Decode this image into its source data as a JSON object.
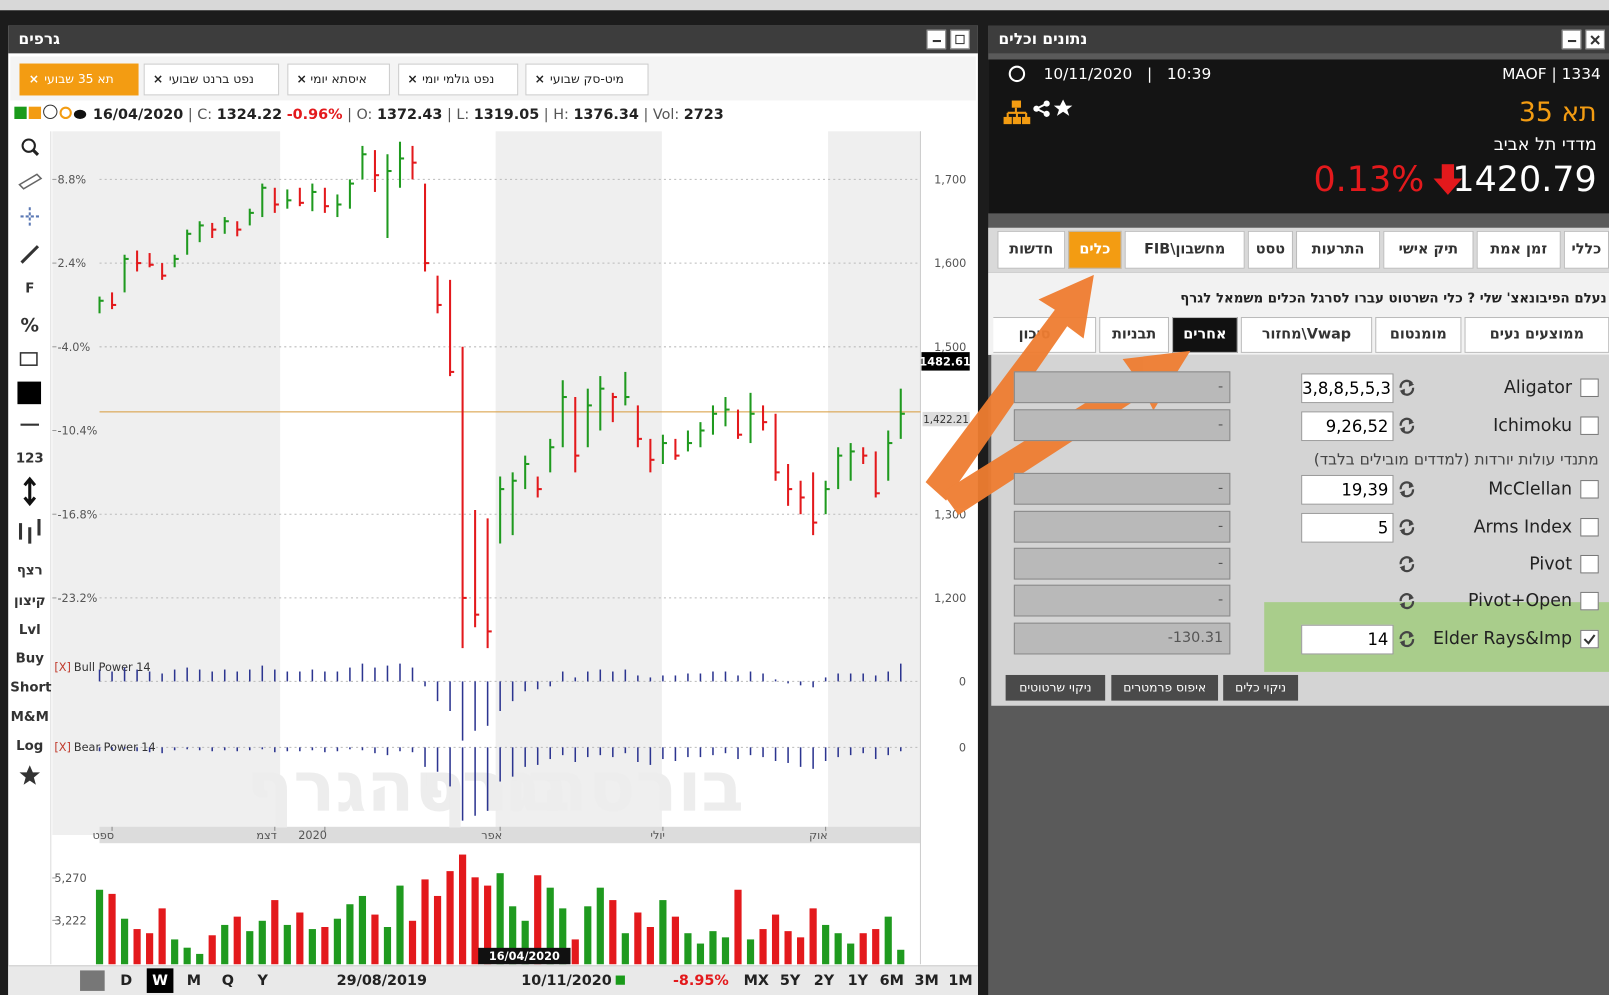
{
  "left_panel": {
    "title": "גרפים",
    "tabs": [
      "תא 35 שבועי",
      "נפט ברנט שבועי",
      "איסתא יומי",
      "נפט גולמי יומי",
      "מיט-סק שבועי"
    ],
    "info": {
      "date": "16/04/2020",
      "close_label": "| C:",
      "close": 1324.22,
      "change": "-0.96%",
      "open_label": "| O:",
      "open": 1372.43,
      "low_label": "| L:",
      "low": 1319.05,
      "high_label": "| H:",
      "high": 1376.34,
      "vol_label": "| Vol:",
      "vol": 2723
    },
    "toolbar": [
      "F",
      "%",
      "123",
      "רצף",
      "קיצון",
      "Lvl",
      "Buy",
      "Short",
      "M&M",
      "Log"
    ],
    "watermark": "בורסהגרף",
    "chart_data": {
      "type": "ohlc",
      "colors": {
        "up": "#1f9a1f",
        "down": "#e3191c",
        "last_line": "#d89a3a"
      },
      "ylim": [
        1130,
        1755
      ],
      "yticks": [
        {
          "value": 1200,
          "label": "1,200"
        },
        {
          "value": 1300,
          "label": "1,300"
        },
        {
          "value": 1500,
          "label": "1,500"
        },
        {
          "value": 1600,
          "label": "1,600"
        },
        {
          "value": 1700,
          "label": "1,700"
        }
      ],
      "y2lim": [
        -27.68,
        12.32
      ],
      "y2ticks": [
        {
          "value": -23.2,
          "label": "-23.2%"
        },
        {
          "value": -16.8,
          "label": "-16.8%"
        },
        {
          "value": -10.4,
          "label": "-10.4%"
        },
        {
          "value": -4.0,
          "label": "-4.0%"
        },
        {
          "value": 2.4,
          "label": "2.4%"
        },
        {
          "value": 8.8,
          "label": "8.8%"
        }
      ],
      "xticks": [
        {
          "value": 1,
          "label": "ספט"
        },
        {
          "value": 14,
          "label": "דצמ"
        },
        {
          "value": 18,
          "label": "2020"
        },
        {
          "value": 32,
          "label": "אפר"
        },
        {
          "value": 45,
          "label": "יולי"
        },
        {
          "value": 58,
          "label": "אוק"
        }
      ],
      "grid": true,
      "crosshair_price": 1482.61,
      "last_price": {
        "value": 1422.21,
        "label": "1,422.21"
      },
      "cursor_date": "16/04/2020",
      "low": [
        1540,
        1545,
        1565,
        1590,
        1595,
        1580,
        1595,
        1610,
        1625,
        1630,
        1635,
        1632,
        1645,
        1655,
        1660,
        1665,
        1668,
        1662,
        1660,
        1655,
        1665,
        1700,
        1685,
        1630,
        1690,
        1700,
        1590,
        1540,
        1465,
        1140,
        1165,
        1140,
        1265,
        1275,
        1330,
        1320,
        1350,
        1380,
        1350,
        1380,
        1400,
        1410,
        1430,
        1380,
        1350,
        1360,
        1365,
        1375,
        1380,
        1395,
        1405,
        1390,
        1385,
        1400,
        1340,
        1310,
        1300,
        1275,
        1300,
        1330,
        1340,
        1360,
        1320,
        1340,
        1390
      ],
      "high": [
        1560,
        1565,
        1610,
        1615,
        1612,
        1600,
        1610,
        1640,
        1650,
        1648,
        1655,
        1650,
        1665,
        1695,
        1690,
        1688,
        1690,
        1695,
        1690,
        1682,
        1700,
        1740,
        1735,
        1730,
        1745,
        1740,
        1695,
        1585,
        1580,
        1500,
        1305,
        1295,
        1345,
        1350,
        1370,
        1345,
        1390,
        1460,
        1440,
        1450,
        1465,
        1445,
        1470,
        1430,
        1390,
        1395,
        1390,
        1400,
        1410,
        1430,
        1440,
        1425,
        1445,
        1430,
        1420,
        1360,
        1340,
        1350,
        1340,
        1380,
        1385,
        1380,
        1375,
        1400,
        1450
      ],
      "close": [
        1555,
        1550,
        1605,
        1600,
        1598,
        1585,
        1605,
        1635,
        1645,
        1640,
        1650,
        1640,
        1660,
        1690,
        1670,
        1675,
        1672,
        1685,
        1668,
        1670,
        1695,
        1730,
        1705,
        1710,
        1725,
        1720,
        1600,
        1550,
        1470,
        1200,
        1180,
        1160,
        1330,
        1340,
        1360,
        1330,
        1380,
        1440,
        1370,
        1430,
        1450,
        1440,
        1440,
        1390,
        1365,
        1385,
        1370,
        1385,
        1400,
        1420,
        1425,
        1395,
        1420,
        1410,
        1350,
        1330,
        1320,
        1290,
        1330,
        1370,
        1375,
        1370,
        1325,
        1385,
        1420
      ],
      "bull_power": {
        "marker": "[X]",
        "name": "Bull Power 14",
        "ylim": [
          -60,
          20
        ],
        "yticks": [
          0
        ],
        "values": [
          12,
          10,
          14,
          12,
          10,
          8,
          12,
          14,
          12,
          10,
          12,
          10,
          12,
          16,
          12,
          10,
          10,
          12,
          10,
          10,
          14,
          18,
          14,
          16,
          18,
          14,
          -5,
          -20,
          -30,
          -60,
          -50,
          -45,
          -30,
          -20,
          -10,
          -8,
          -5,
          10,
          4,
          10,
          12,
          10,
          12,
          6,
          4,
          6,
          6,
          8,
          8,
          10,
          10,
          6,
          10,
          8,
          2,
          -2,
          -4,
          -6,
          4,
          8,
          8,
          8,
          6,
          10,
          18
        ]
      },
      "bear_power": {
        "marker": "[X]",
        "name": "Bear Power 14",
        "ylim": [
          -75,
          10
        ],
        "yticks": [
          0
        ],
        "values": [
          -4,
          -3,
          -2,
          -4,
          -5,
          -6,
          -3,
          -2,
          -3,
          -4,
          -3,
          -4,
          -3,
          -2,
          -5,
          -4,
          -4,
          -3,
          -5,
          -4,
          -2,
          -3,
          -6,
          -8,
          -4,
          -5,
          -20,
          -25,
          -40,
          -75,
          -70,
          -65,
          -35,
          -30,
          -20,
          -18,
          -12,
          -8,
          -15,
          -10,
          -8,
          -10,
          -6,
          -15,
          -18,
          -12,
          -14,
          -10,
          -10,
          -8,
          -6,
          -12,
          -8,
          -10,
          -14,
          -16,
          -20,
          -22,
          -14,
          -10,
          -8,
          -6,
          -12,
          -8,
          -4
        ]
      },
      "volume": {
        "ylim": [
          1100,
          6800
        ],
        "yticks": [
          {
            "value": 3222,
            "label": "3,222"
          },
          {
            "value": 5270,
            "label": "5,270"
          }
        ],
        "values": [
          4700,
          4500,
          3300,
          2800,
          2600,
          3800,
          2300,
          1900,
          1600,
          2500,
          3000,
          3400,
          2700,
          3200,
          4200,
          3000,
          3600,
          2800,
          2900,
          3300,
          4000,
          4400,
          3500,
          2900,
          4900,
          3200,
          5200,
          4400,
          5600,
          6400,
          5300,
          4900,
          5500,
          3900,
          3200,
          5400,
          4800,
          3800,
          2300,
          3900,
          4800,
          4200,
          2600,
          3600,
          2900,
          4200,
          3400,
          2600,
          2100,
          2700,
          2400,
          4700,
          2300,
          2800,
          3500,
          2700,
          2400,
          3800,
          3000,
          2600,
          2100,
          2600,
          2800,
          3400,
          1800
        ]
      }
    },
    "bottom_bar": {
      "periods": [
        "D",
        "W",
        "M",
        "Q",
        "Y"
      ],
      "active_period": 1,
      "start": "29/08/2019",
      "end": "10/11/2020",
      "change": "-8.95%",
      "ranges": [
        "MX",
        "5Y",
        "2Y",
        "1Y",
        "6M",
        "3M",
        "1M"
      ]
    }
  },
  "right_panel": {
    "title": "נתונים וכלים",
    "date": "10/11/2020",
    "separator": "|",
    "time": "10:39",
    "exchange": "MAOF | 1334",
    "name": "תא 35",
    "subtitle": "מדדי תל אביב",
    "change": "0.13%",
    "price": 1420.79,
    "tabs": [
      "כללי",
      "זמן אמת",
      "תיק אישי",
      "התרעות",
      "טסט",
      "מחשבון\\FIB",
      "כלים",
      "חדשות"
    ],
    "active_tab": 6,
    "notice": "לאן נעלם הפיבונאצ' שלי ? כלי השרטוט עברו לסרגל הכלים משמאל לגרף",
    "subtabs": [
      "ממוצעים נעים",
      "מומנטום",
      "Vwap\\מחזור",
      "אחרים",
      "תבניות",
      "סיכון"
    ],
    "active_subtab": 3,
    "group_note": "מתנדי עולות יורדות (למדדים מובילים בלבד)",
    "indicators": [
      {
        "name": "Aligator",
        "param": "3,8,8,5,5,3",
        "output": "-",
        "checked": false
      },
      {
        "name": "Ichimoku",
        "param": "9,26,52",
        "output": "-",
        "checked": false
      },
      {
        "name": "McClellan",
        "param": "19,39",
        "output": "-",
        "checked": false
      },
      {
        "name": "Arms Index",
        "param": "5",
        "output": "-",
        "checked": false
      },
      {
        "name": "Pivot",
        "output": "-",
        "checked": false
      },
      {
        "name": "Pivot+Open",
        "output": "-",
        "checked": false
      },
      {
        "name": "Elder Rays&Imp",
        "param": "14",
        "output": "-130.31",
        "checked": true
      }
    ],
    "buttons": [
      "ניקוי כלים",
      "איפוס פרמטרים",
      "ניקוי שרטוטים"
    ]
  }
}
